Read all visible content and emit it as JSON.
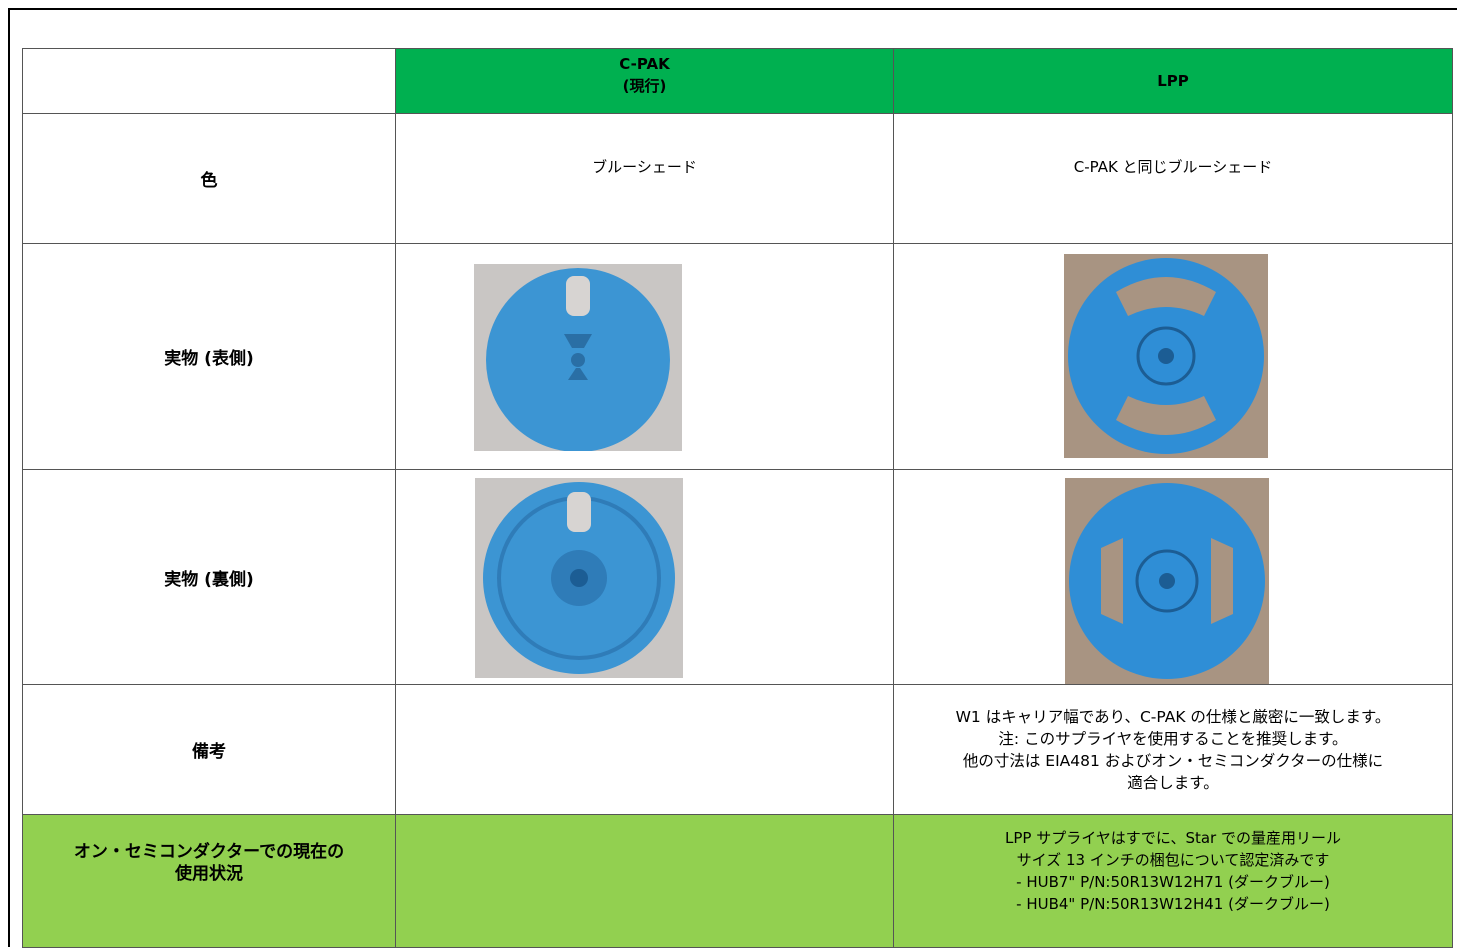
{
  "table": {
    "header": {
      "cpak": [
        "C-PAK",
        "(現行)"
      ],
      "lpp": "LPP"
    },
    "rows": [
      {
        "label": "色",
        "cpak": "ブルーシェード",
        "lpp": "C-PAK と同じブルーシェード"
      },
      {
        "label": "実物 (表側)"
      },
      {
        "label": "実物 (裏側)"
      },
      {
        "label": "備考",
        "lpp": [
          "W1 はキャリア幅であり、C-PAK の仕様と厳密に一致します。",
          "注: このサプライヤを使用することを推奨します。",
          "他の寸法は EIA481 およびオン・セミコンダクターの仕様に",
          "適合します。"
        ]
      },
      {
        "label": [
          "オン・セミコンダクターでの現在の",
          "使用状況"
        ],
        "lpp": [
          "LPP サプライヤはすでに、Star での量産用リール",
          "サイズ 13 インチの梱包について認定済みです",
          "- HUB7\" P/N:50R13W12H71 (ダークブルー)",
          "- HUB4\" P/N:50R13W12H41 (ダークブルー)"
        ]
      }
    ]
  }
}
